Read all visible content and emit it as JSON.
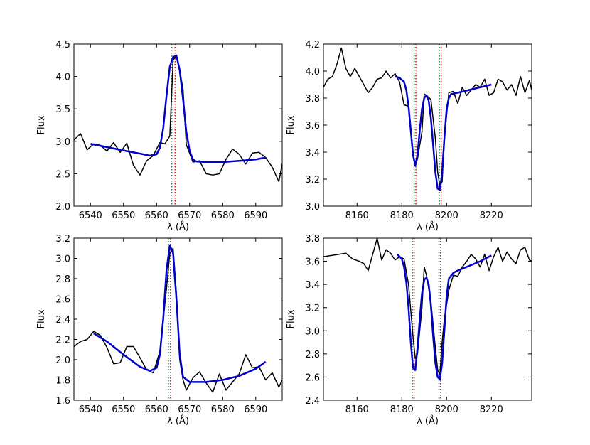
{
  "chart_data": [
    {
      "type": "line",
      "xlabel": "λ (Å)",
      "ylabel": "Flux",
      "xlim": [
        6535,
        6598
      ],
      "ylim": [
        2.0,
        4.5
      ],
      "xticks": [
        6540,
        6550,
        6560,
        6570,
        6580,
        6590
      ],
      "yticks": [
        2.0,
        2.5,
        3.0,
        3.5,
        4.0,
        4.5
      ],
      "xtick_labels": [
        "6540",
        "6550",
        "6560",
        "6570",
        "6580",
        "6590"
      ],
      "ytick_labels": [
        "2.0",
        "2.5",
        "3.0",
        "3.5",
        "4.0",
        "4.5"
      ],
      "grid": false,
      "reference_lines": [
        {
          "x": 6564.6,
          "color": "#2e8b57",
          "style": "dotted"
        },
        {
          "x": 6565.6,
          "color": "#b22222",
          "style": "dotted"
        }
      ],
      "series": [
        {
          "role": "observed",
          "color": "#000000",
          "width": 1.5,
          "x": [
            6535,
            6537,
            6539,
            6541,
            6543,
            6545,
            6547,
            6549,
            6551,
            6553,
            6555,
            6557,
            6559,
            6561,
            6562.5,
            6564,
            6565,
            6566,
            6567,
            6568,
            6569,
            6571,
            6573,
            6575,
            6577,
            6579,
            6581,
            6583,
            6585,
            6587,
            6589,
            6591,
            6593,
            6595,
            6597,
            6598
          ],
          "y": [
            3.02,
            3.12,
            2.87,
            2.96,
            2.94,
            2.85,
            2.98,
            2.83,
            2.97,
            2.63,
            2.48,
            2.7,
            2.78,
            2.98,
            2.96,
            3.08,
            4.25,
            4.33,
            4.1,
            3.8,
            2.95,
            2.68,
            2.7,
            2.5,
            2.48,
            2.5,
            2.72,
            2.88,
            2.8,
            2.65,
            2.82,
            2.83,
            2.75,
            2.6,
            2.38,
            2.65
          ]
        },
        {
          "role": "fit",
          "color": "#0000cc",
          "width": 2.5,
          "x": [
            6540,
            6545,
            6550,
            6555,
            6558,
            6560,
            6561,
            6562,
            6563,
            6564,
            6565,
            6566,
            6567,
            6568,
            6569,
            6570,
            6571,
            6572,
            6575,
            6580,
            6585,
            6590,
            6593
          ],
          "y": [
            2.96,
            2.91,
            2.86,
            2.81,
            2.78,
            2.8,
            2.9,
            3.2,
            3.7,
            4.15,
            4.3,
            4.32,
            4.1,
            3.65,
            3.15,
            2.85,
            2.72,
            2.69,
            2.68,
            2.68,
            2.7,
            2.72,
            2.75
          ]
        }
      ]
    },
    {
      "type": "line",
      "xlabel": "λ (Å)",
      "ylabel": "Flux",
      "xlim": [
        8145,
        8238
      ],
      "ylim": [
        3.0,
        4.2
      ],
      "xticks": [
        8160,
        8180,
        8200,
        8220
      ],
      "yticks": [
        3.0,
        3.2,
        3.4,
        3.6,
        3.8,
        4.0,
        4.2
      ],
      "xtick_labels": [
        "8160",
        "8180",
        "8200",
        "8220"
      ],
      "ytick_labels": [
        "3.0",
        "3.2",
        "3.4",
        "3.6",
        "3.8",
        "4.0",
        "4.2"
      ],
      "grid": false,
      "reference_lines": [
        {
          "x": 8185.5,
          "color": "#2e8b57",
          "style": "dotted"
        },
        {
          "x": 8186.3,
          "color": "#b22222",
          "style": "dotted"
        },
        {
          "x": 8196.8,
          "color": "#2e8b57",
          "style": "dotted"
        },
        {
          "x": 8197.6,
          "color": "#b22222",
          "style": "dotted"
        }
      ],
      "series": [
        {
          "role": "observed",
          "color": "#000000",
          "width": 1.5,
          "x": [
            8145,
            8147,
            8149,
            8151,
            8153,
            8155,
            8157,
            8159,
            8161,
            8163,
            8165,
            8167,
            8169,
            8171,
            8173,
            8175,
            8177,
            8179,
            8181,
            8183,
            8185,
            8186,
            8187,
            8189,
            8190,
            8191,
            8193,
            8195,
            8196,
            8197,
            8198,
            8199,
            8201,
            8203,
            8205,
            8207,
            8209,
            8211,
            8213,
            8215,
            8217,
            8219,
            8221,
            8223,
            8225,
            8227,
            8229,
            8231,
            8233,
            8235,
            8237,
            8238
          ],
          "y": [
            3.88,
            3.94,
            3.96,
            4.05,
            4.17,
            4.02,
            3.96,
            4.02,
            3.96,
            3.9,
            3.84,
            3.88,
            3.94,
            3.95,
            4.0,
            3.95,
            3.98,
            3.92,
            3.75,
            3.74,
            3.4,
            3.3,
            3.35,
            3.55,
            3.83,
            3.82,
            3.79,
            3.5,
            3.25,
            3.15,
            3.18,
            3.5,
            3.84,
            3.85,
            3.76,
            3.88,
            3.82,
            3.86,
            3.9,
            3.88,
            3.94,
            3.82,
            3.84,
            3.94,
            3.92,
            3.86,
            3.9,
            3.82,
            3.96,
            3.84,
            3.93,
            3.86
          ]
        },
        {
          "role": "fit",
          "color": "#0000cc",
          "width": 2.5,
          "x": [
            8177,
            8179,
            8181,
            8182,
            8183,
            8184,
            8185,
            8186,
            8187,
            8188,
            8189,
            8190,
            8191,
            8192,
            8193,
            8194,
            8195,
            8196,
            8197,
            8198,
            8199,
            8200,
            8201,
            8202,
            8205,
            8210,
            8215,
            8220
          ],
          "y": [
            3.96,
            3.95,
            3.92,
            3.86,
            3.74,
            3.56,
            3.38,
            3.3,
            3.38,
            3.56,
            3.72,
            3.8,
            3.82,
            3.78,
            3.65,
            3.45,
            3.25,
            3.13,
            3.12,
            3.25,
            3.5,
            3.72,
            3.8,
            3.83,
            3.84,
            3.86,
            3.88,
            3.9
          ]
        }
      ]
    },
    {
      "type": "line",
      "xlabel": "λ (Å)",
      "ylabel": "Flux",
      "xlim": [
        6535,
        6598
      ],
      "ylim": [
        1.6,
        3.2
      ],
      "xticks": [
        6540,
        6550,
        6560,
        6570,
        6580,
        6590
      ],
      "yticks": [
        1.6,
        1.8,
        2.0,
        2.2,
        2.4,
        2.6,
        2.8,
        3.0,
        3.2
      ],
      "xtick_labels": [
        "6540",
        "6550",
        "6560",
        "6570",
        "6580",
        "6590"
      ],
      "ytick_labels": [
        "1.6",
        "1.8",
        "2.0",
        "2.2",
        "2.4",
        "2.6",
        "2.8",
        "3.0",
        "3.2"
      ],
      "grid": false,
      "reference_lines": [
        {
          "x": 6563.6,
          "color": "#2e8b57",
          "style": "dotted"
        },
        {
          "x": 6564.2,
          "color": "#b22222",
          "style": "dotted"
        }
      ],
      "series": [
        {
          "role": "observed",
          "color": "#000000",
          "width": 1.5,
          "x": [
            6535,
            6537,
            6539,
            6541,
            6543,
            6545,
            6547,
            6549,
            6551,
            6553,
            6555,
            6557,
            6559,
            6561,
            6563,
            6564,
            6565,
            6566,
            6567,
            6568,
            6569,
            6571,
            6573,
            6575,
            6577,
            6579,
            6581,
            6583,
            6585,
            6587,
            6589,
            6591,
            6593,
            6595,
            6597,
            6598
          ],
          "y": [
            2.13,
            2.18,
            2.2,
            2.28,
            2.24,
            2.12,
            1.96,
            1.97,
            2.13,
            2.13,
            2.02,
            1.9,
            1.87,
            2.08,
            2.7,
            3.05,
            3.1,
            2.65,
            2.0,
            1.8,
            1.7,
            1.82,
            1.88,
            1.77,
            1.68,
            1.86,
            1.7,
            1.78,
            1.86,
            2.05,
            1.92,
            1.93,
            1.8,
            1.87,
            1.73,
            1.8
          ]
        },
        {
          "role": "fit",
          "color": "#0000cc",
          "width": 2.5,
          "x": [
            6541,
            6545,
            6550,
            6555,
            6558,
            6560,
            6561,
            6562,
            6563,
            6564,
            6565,
            6566,
            6567,
            6568,
            6570,
            6575,
            6580,
            6585,
            6590,
            6593
          ],
          "y": [
            2.26,
            2.18,
            2.05,
            1.93,
            1.89,
            1.92,
            2.05,
            2.4,
            2.88,
            3.13,
            3.05,
            2.6,
            2.05,
            1.83,
            1.78,
            1.78,
            1.8,
            1.84,
            1.91,
            1.98
          ]
        }
      ]
    },
    {
      "type": "line",
      "xlabel": "λ (Å)",
      "ylabel": "Flux",
      "xlim": [
        8145,
        8238
      ],
      "ylim": [
        2.4,
        3.8
      ],
      "xticks": [
        8160,
        8180,
        8200,
        8220
      ],
      "yticks": [
        2.4,
        2.6,
        2.8,
        3.0,
        3.2,
        3.4,
        3.6,
        3.8
      ],
      "xtick_labels": [
        "8160",
        "8180",
        "8200",
        "8220"
      ],
      "ytick_labels": [
        "2.4",
        "2.6",
        "2.8",
        "3.0",
        "3.2",
        "3.4",
        "3.6",
        "3.8"
      ],
      "grid": false,
      "reference_lines": [
        {
          "x": 8184.8,
          "color": "#2e8b57",
          "style": "dotted"
        },
        {
          "x": 8185.5,
          "color": "#b22222",
          "style": "dotted"
        },
        {
          "x": 8196.6,
          "color": "#2e8b57",
          "style": "dotted"
        },
        {
          "x": 8197.3,
          "color": "#b22222",
          "style": "dotted"
        }
      ],
      "series": [
        {
          "role": "observed",
          "color": "#000000",
          "width": 1.5,
          "x": [
            8145,
            8155,
            8158,
            8161,
            8163,
            8165,
            8167,
            8169,
            8171,
            8173,
            8175,
            8177,
            8179,
            8181,
            8183,
            8185,
            8186,
            8187,
            8189,
            8190,
            8191,
            8193,
            8195,
            8196,
            8197,
            8198,
            8199,
            8201,
            8203,
            8205,
            8207,
            8209,
            8211,
            8213,
            8215,
            8217,
            8219,
            8221,
            8223,
            8225,
            8227,
            8229,
            8231,
            8233,
            8235,
            8237,
            8238
          ],
          "y": [
            3.64,
            3.67,
            3.62,
            3.6,
            3.58,
            3.52,
            3.66,
            3.8,
            3.61,
            3.7,
            3.67,
            3.61,
            3.64,
            3.62,
            3.4,
            2.95,
            2.76,
            2.8,
            3.2,
            3.55,
            3.48,
            3.25,
            2.85,
            2.66,
            2.62,
            2.9,
            3.1,
            3.35,
            3.48,
            3.47,
            3.55,
            3.6,
            3.66,
            3.62,
            3.55,
            3.66,
            3.52,
            3.64,
            3.72,
            3.6,
            3.68,
            3.62,
            3.58,
            3.7,
            3.72,
            3.61,
            3.6
          ]
        },
        {
          "role": "fit",
          "color": "#0000cc",
          "width": 2.5,
          "x": [
            8178,
            8180,
            8181,
            8182,
            8183,
            8184,
            8185,
            8186,
            8187,
            8188,
            8189,
            8190,
            8191,
            8192,
            8193,
            8194,
            8195,
            8196,
            8197,
            8198,
            8199,
            8200,
            8201,
            8203,
            8205,
            8210,
            8215,
            8220
          ],
          "y": [
            3.66,
            3.62,
            3.55,
            3.42,
            3.2,
            2.9,
            2.68,
            2.66,
            2.85,
            3.1,
            3.32,
            3.44,
            3.46,
            3.4,
            3.22,
            2.95,
            2.72,
            2.6,
            2.58,
            2.72,
            3.0,
            3.3,
            3.45,
            3.5,
            3.52,
            3.56,
            3.6,
            3.65
          ]
        }
      ]
    }
  ]
}
